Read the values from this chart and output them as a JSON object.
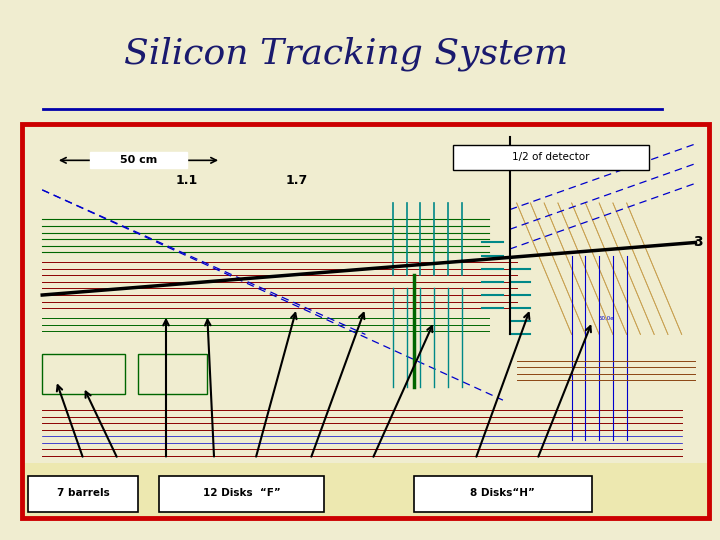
{
  "title": "Silicon Tracking System",
  "title_color": "#1a1a6e",
  "title_fontsize": 26,
  "bg_outer": "#f0edd0",
  "bg_title": "#ffffff",
  "panel_bg": "#ede8b0",
  "panel_border_color": "#cc0000",
  "label_50cm": "50 cm",
  "label_11": "1.1",
  "label_17": "1.7",
  "label_3": "3",
  "label_half": "1/2 of detector",
  "label_barrels": "7 barrels",
  "label_disksF": "12 Disks  “F”",
  "label_disksH": "8 Disks“H”",
  "green_color": "#006600",
  "darkred_color": "#8b0000",
  "red_color": "#cc0000",
  "cyan_color": "#008888",
  "blue_color": "#0000cc",
  "black_color": "#000000",
  "brown_color": "#8b4513",
  "tan_color": "#c8a050"
}
